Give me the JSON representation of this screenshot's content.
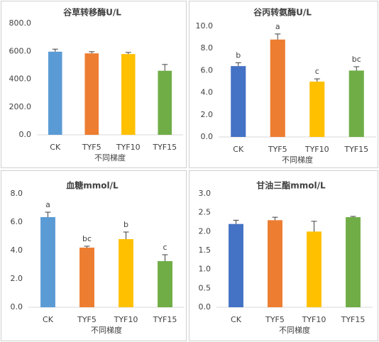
{
  "chart_data": [
    {
      "type": "bar",
      "title": "谷草转移酶U/L",
      "x_label": "不同梯度",
      "categories": [
        "CK",
        "TYF5",
        "TYF10",
        "TYF15"
      ],
      "values": [
        597,
        585,
        580,
        460
      ],
      "errors": [
        18,
        12,
        12,
        45
      ],
      "colors": [
        "#5b9bd5",
        "#ed7d31",
        "#ffc000",
        "#70ad47"
      ],
      "ylim": [
        0,
        800
      ],
      "yticks": [
        {
          "value": 0,
          "label": "0.0"
        },
        {
          "value": 200,
          "label": "200.0"
        },
        {
          "value": 400,
          "label": "400.0"
        },
        {
          "value": 600,
          "label": "600.0"
        },
        {
          "value": 800,
          "label": "800.0"
        }
      ]
    },
    {
      "type": "bar",
      "title": "谷丙转氨酶U/L",
      "x_label": "不同梯度",
      "categories": [
        "CK",
        "TYF5",
        "TYF10",
        "TYF15"
      ],
      "values": [
        6.4,
        8.8,
        5.0,
        6.0
      ],
      "errors": [
        0.3,
        0.5,
        0.25,
        0.35
      ],
      "annotations": [
        "b",
        "a",
        "c",
        "bc"
      ],
      "colors": [
        "#4472c4",
        "#ed7d31",
        "#ffc000",
        "#70ad47"
      ],
      "ylim": [
        0,
        10
      ],
      "yticks": [
        {
          "value": 0,
          "label": "0.0"
        },
        {
          "value": 2,
          "label": "2.0"
        },
        {
          "value": 4,
          "label": "4.0"
        },
        {
          "value": 6,
          "label": "6.0"
        },
        {
          "value": 8,
          "label": "8.0"
        },
        {
          "value": 10,
          "label": "10.0"
        }
      ]
    },
    {
      "type": "bar",
      "title": "血糖mmol/L",
      "x_label": "不同梯度",
      "categories": [
        "CK",
        "TYF5",
        "TYF10",
        "TYF15"
      ],
      "values": [
        6.35,
        4.2,
        4.8,
        3.25
      ],
      "errors": [
        0.35,
        0.1,
        0.5,
        0.45
      ],
      "annotations": [
        "a",
        "bc",
        "b",
        "c"
      ],
      "colors": [
        "#5b9bd5",
        "#ed7d31",
        "#ffc000",
        "#70ad47"
      ],
      "ylim": [
        0,
        8
      ],
      "yticks": [
        {
          "value": 0,
          "label": "0.0"
        },
        {
          "value": 2,
          "label": "2.0"
        },
        {
          "value": 4,
          "label": "4.0"
        },
        {
          "value": 6,
          "label": "6.0"
        },
        {
          "value": 8,
          "label": "8.0"
        }
      ]
    },
    {
      "type": "bar",
      "title": "甘油三酯mmol/L",
      "x_label": "不同梯度",
      "categories": [
        "CK",
        "TYF5",
        "TYF10",
        "TYF15"
      ],
      "values": [
        2.2,
        2.3,
        2.0,
        2.38
      ],
      "errors": [
        0.1,
        0.08,
        0.27,
        0.02
      ],
      "colors": [
        "#4472c4",
        "#ed7d31",
        "#ffc000",
        "#70ad47"
      ],
      "ylim": [
        0,
        3
      ],
      "yticks": [
        {
          "value": 0,
          "label": "0.0"
        },
        0.5,
        {
          "value": 1,
          "label": "1.0"
        },
        1.5,
        {
          "value": 2,
          "label": "2.0"
        },
        2.5,
        {
          "value": 3,
          "label": "3.0"
        }
      ]
    }
  ]
}
